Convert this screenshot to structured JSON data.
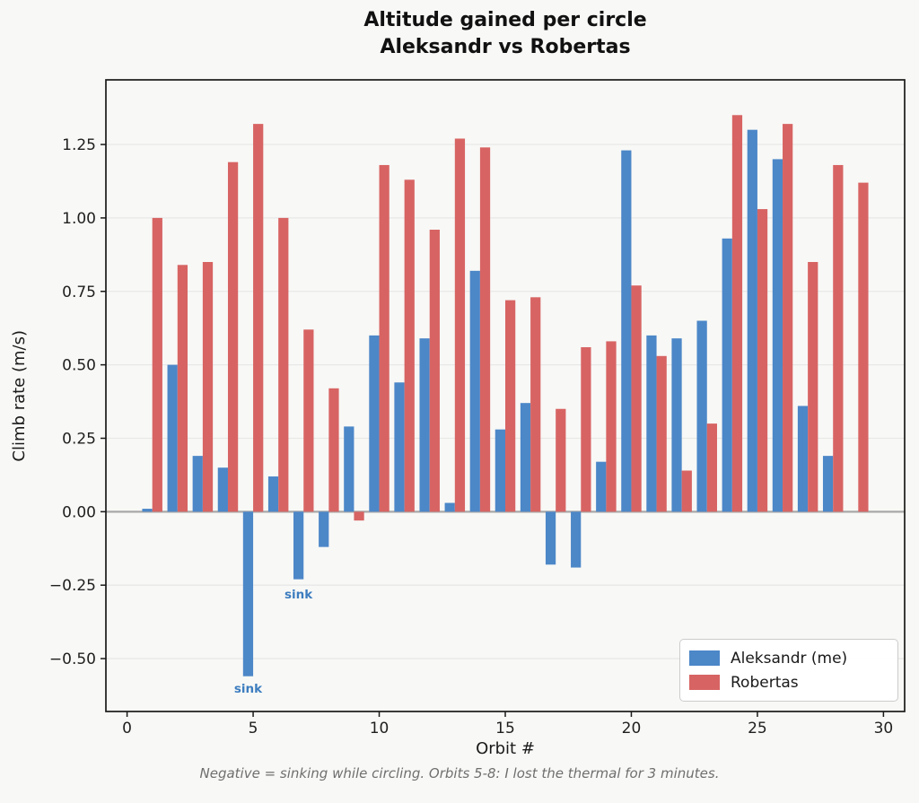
{
  "figure": {
    "title_line1": "Altitude gained per circle",
    "title_line2": "Aleksandr vs Robertas",
    "caption": "Negative = sinking while circling. Orbits 5-8: I lost the thermal for 3 minutes."
  },
  "axes": {
    "x_label": "Orbit #",
    "y_label": "Climb rate (m/s)",
    "x_ticks": [
      {
        "v": 0,
        "label": "0"
      },
      {
        "v": 5,
        "label": "5"
      },
      {
        "v": 10,
        "label": "10"
      },
      {
        "v": 15,
        "label": "15"
      },
      {
        "v": 20,
        "label": "20"
      },
      {
        "v": 25,
        "label": "25"
      },
      {
        "v": 30,
        "label": "30"
      }
    ],
    "y_ticks": [
      {
        "v": 1.25,
        "label": "1.25"
      },
      {
        "v": 1.0,
        "label": "1.00"
      },
      {
        "v": 0.75,
        "label": "0.75"
      },
      {
        "v": 0.5,
        "label": "0.50"
      },
      {
        "v": 0.25,
        "label": "0.25"
      },
      {
        "v": 0.0,
        "label": "0.00"
      },
      {
        "v": -0.25,
        "label": "−0.25"
      },
      {
        "v": -0.5,
        "label": "−0.50"
      }
    ],
    "frame_color": "#1a1a1a",
    "grid_color": "#e8e8e8",
    "zero_line_color": "#a8a8a8",
    "tick_label_color": "#1f1f1f",
    "plot_bg": "#f8f8f6"
  },
  "legend": {
    "items": [
      {
        "label": "Aleksandr (me)",
        "color": "#4c87c8"
      },
      {
        "label": "Robertas",
        "color": "#d76463"
      }
    ]
  },
  "chart_data": {
    "type": "bar",
    "title": "Altitude gained per circle\nAleksandr vs Robertas",
    "xlabel": "Orbit #",
    "ylabel": "Climb rate (m/s)",
    "x": [
      1,
      2,
      3,
      4,
      5,
      6,
      7,
      8,
      9,
      10,
      11,
      12,
      13,
      14,
      15,
      16,
      17,
      18,
      19,
      20,
      21,
      22,
      23,
      24,
      25,
      26,
      27,
      28,
      29
    ],
    "series": [
      {
        "name": "Aleksandr (me)",
        "color": "#4c87c8",
        "values": [
          0.01,
          0.5,
          0.19,
          0.15,
          -0.56,
          0.12,
          -0.23,
          -0.12,
          0.29,
          0.6,
          0.44,
          0.59,
          0.03,
          0.82,
          0.28,
          0.37,
          -0.18,
          -0.19,
          0.17,
          1.23,
          0.6,
          0.59,
          0.65,
          0.93,
          1.3,
          1.2,
          0.36,
          0.19,
          0.0
        ]
      },
      {
        "name": "Robertas",
        "color": "#d76463",
        "values": [
          1.0,
          0.84,
          0.85,
          1.19,
          1.32,
          1.0,
          0.62,
          0.42,
          -0.03,
          1.18,
          1.13,
          0.96,
          1.27,
          1.24,
          0.72,
          0.73,
          0.35,
          0.56,
          0.58,
          0.77,
          0.53,
          0.14,
          0.3,
          1.35,
          1.03,
          1.32,
          0.85,
          1.18,
          1.12
        ]
      }
    ],
    "bar_width": 0.4,
    "xlim": [
      -0.84,
      30.84
    ],
    "ylim": [
      -0.68,
      1.47
    ],
    "grid": "horizontal gridlines every 0.25",
    "legend_position": "lower right",
    "annotations": [
      {
        "text": "sink",
        "x": 4.8,
        "y": -0.6,
        "color": "#3d7dbf"
      },
      {
        "text": "sink",
        "x": 6.8,
        "y": -0.28,
        "color": "#3d7dbf"
      }
    ]
  }
}
